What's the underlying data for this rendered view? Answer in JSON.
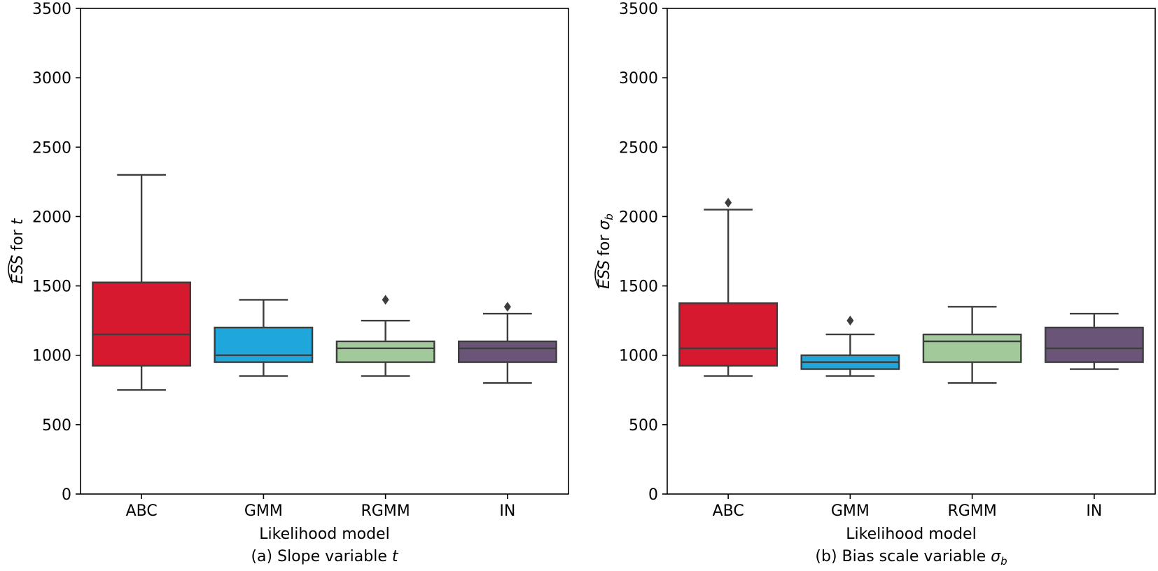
{
  "chart_data": [
    {
      "type": "box",
      "caption_prefix": "(a) Slope variable ",
      "caption_var": "t",
      "xlabel": "Likelihood model",
      "ylabel_prefix": "for ",
      "ylabel_hat": "ESS",
      "ylabel_var": "t",
      "ylim": [
        0,
        3500
      ],
      "yticks": [
        0,
        500,
        1000,
        1500,
        2000,
        2500,
        3000,
        3500
      ],
      "categories": [
        "ABC",
        "GMM",
        "RGMM",
        "IN"
      ],
      "boxes": [
        {
          "category": "ABC",
          "whisker_low": 750,
          "q1": 925,
          "median": 1150,
          "q3": 1525,
          "whisker_high": 2300,
          "outliers": []
        },
        {
          "category": "GMM",
          "whisker_low": 850,
          "q1": 950,
          "median": 1000,
          "q3": 1200,
          "whisker_high": 1400,
          "outliers": []
        },
        {
          "category": "RGMM",
          "whisker_low": 850,
          "q1": 950,
          "median": 1050,
          "q3": 1100,
          "whisker_high": 1250,
          "outliers": [
            1400
          ]
        },
        {
          "category": "IN",
          "whisker_low": 800,
          "q1": 950,
          "median": 1050,
          "q3": 1100,
          "whisker_high": 1300,
          "outliers": [
            1350
          ]
        }
      ]
    },
    {
      "type": "box",
      "caption_prefix": "(b) Bias scale variable ",
      "caption_var": "σ",
      "caption_sub": "b",
      "xlabel": "Likelihood model",
      "ylabel_prefix": "for ",
      "ylabel_hat": "ESS",
      "ylabel_var": "σ",
      "ylabel_sub": "b",
      "ylim": [
        0,
        3500
      ],
      "yticks": [
        0,
        500,
        1000,
        1500,
        2000,
        2500,
        3000,
        3500
      ],
      "categories": [
        "ABC",
        "GMM",
        "RGMM",
        "IN"
      ],
      "boxes": [
        {
          "category": "ABC",
          "whisker_low": 850,
          "q1": 925,
          "median": 1050,
          "q3": 1375,
          "whisker_high": 2050,
          "outliers": [
            2100
          ]
        },
        {
          "category": "GMM",
          "whisker_low": 850,
          "q1": 900,
          "median": 950,
          "q3": 1000,
          "whisker_high": 1150,
          "outliers": [
            1250
          ]
        },
        {
          "category": "RGMM",
          "whisker_low": 800,
          "q1": 950,
          "median": 1100,
          "q3": 1150,
          "whisker_high": 1350,
          "outliers": []
        },
        {
          "category": "IN",
          "whisker_low": 900,
          "q1": 950,
          "median": 1050,
          "q3": 1200,
          "whisker_high": 1300,
          "outliers": []
        }
      ]
    }
  ],
  "colors": {
    "ABC": "#d7192f",
    "GMM": "#1fa6da",
    "RGMM": "#a2c99a",
    "IN": "#6a5578",
    "line": "#3d3d3d",
    "axis": "#000000"
  }
}
